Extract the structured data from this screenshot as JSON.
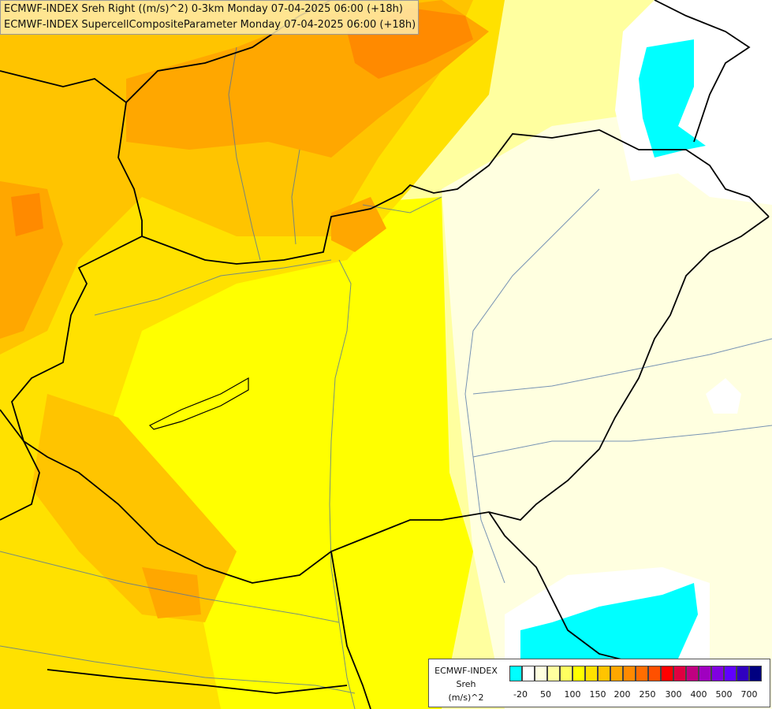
{
  "title": {
    "line1": "ECMWF-INDEX Sreh Right ((m/s)^2) 0-3km Monday 07-04-2025 06:00 (+18h)",
    "line2": "ECMWF-INDEX SupercellCompositeParameter Monday 07-04-2025 06:00 (+18h)"
  },
  "legend": {
    "title1": "ECMWF-INDEX",
    "title2": "Sreh",
    "title3": "(m/s)^2",
    "colors": [
      "#00ffff",
      "#ffffff",
      "#ffffe0",
      "#ffff9f",
      "#ffff60",
      "#ffff00",
      "#ffe100",
      "#ffc400",
      "#ffa700",
      "#ff8a00",
      "#ff6d00",
      "#ff5000",
      "#ff0000",
      "#e00040",
      "#c00080",
      "#a000c0",
      "#8000e0",
      "#6000ff",
      "#3000c0",
      "#000080"
    ],
    "ticks": [
      "-20",
      "50",
      "100",
      "150",
      "200",
      "250",
      "300",
      "400",
      "500",
      "700"
    ]
  },
  "palette": {
    "orange_dark": "#ff8a00",
    "orange": "#ffa700",
    "yellow_orange": "#ffc400",
    "yellow": "#ffe100",
    "yellow_light": "#ffff00",
    "pale": "#ffff9f",
    "paler": "#ffffe0",
    "cyan": "#00ffff",
    "border": "#000000",
    "river": "#4a6fa5"
  }
}
